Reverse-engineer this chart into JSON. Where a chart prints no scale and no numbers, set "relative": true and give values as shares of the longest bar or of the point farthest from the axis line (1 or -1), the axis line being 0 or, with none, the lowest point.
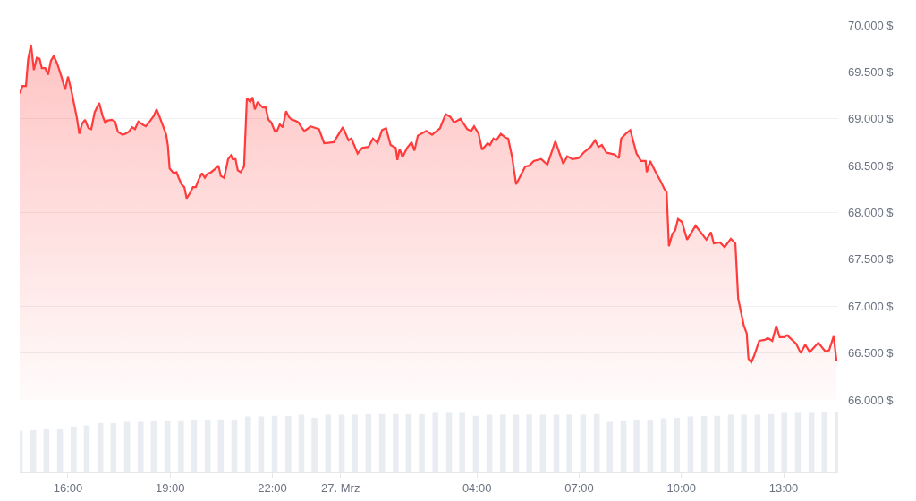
{
  "chart_data": [
    {
      "type": "area",
      "color": "#ff3b3b",
      "grid": "y",
      "tick_labels": "y",
      "xlim": [
        "--03-26T14:35",
        "--03-27T14:36"
      ],
      "ylim": [
        66000,
        70000
      ],
      "yticks": [
        {
          "value": 66000,
          "label": "66.000 $"
        },
        {
          "value": 66500,
          "label": "66.500 $"
        },
        {
          "value": 67000,
          "label": "67.000 $"
        },
        {
          "value": 67500,
          "label": "67.500 $"
        },
        {
          "value": 68000,
          "label": "68.000 $"
        },
        {
          "value": 68500,
          "label": "68.500 $"
        },
        {
          "value": 69000,
          "label": "69.000 $"
        },
        {
          "value": 69500,
          "label": "69.500 $"
        },
        {
          "value": 70000,
          "label": "70.000 $"
        }
      ],
      "x": [
        "--03-26T14:35",
        "--03-26T14:40",
        "--03-26T14:46",
        "--03-26T14:50",
        "--03-26T14:55",
        "--03-26T15:00",
        "--03-26T15:05",
        "--03-26T15:10",
        "--03-26T15:14",
        "--03-26T15:20",
        "--03-26T15:25",
        "--03-26T15:30",
        "--03-26T15:35",
        "--03-26T15:41",
        "--03-26T15:49",
        "--03-26T15:55",
        "--03-26T16:00",
        "--03-26T16:06",
        "--03-26T16:11",
        "--03-26T16:16",
        "--03-26T16:20",
        "--03-26T16:25",
        "--03-26T16:30",
        "--03-26T16:36",
        "--03-26T16:41",
        "--03-26T16:47",
        "--03-26T16:55",
        "--03-26T17:01",
        "--03-26T17:06",
        "--03-26T17:09",
        "--03-26T17:17",
        "--03-26T17:23",
        "--03-26T17:28",
        "--03-26T17:36",
        "--03-26T17:41",
        "--03-26T17:47",
        "--03-26T17:53",
        "--03-26T17:58",
        "--03-26T18:04",
        "--03-26T18:11",
        "--03-26T18:17",
        "--03-26T18:25",
        "--03-26T18:31",
        "--03-26T18:36",
        "--03-26T18:42",
        "--03-26T18:47",
        "--03-26T18:53",
        "--03-26T18:56",
        "--03-26T18:59",
        "--03-26T19:06",
        "--03-26T19:11",
        "--03-26T19:15",
        "--03-26T19:20",
        "--03-26T19:25",
        "--03-26T19:29",
        "--03-26T19:36",
        "--03-26T19:40",
        "--03-26T19:45",
        "--03-26T19:50",
        "--03-26T19:56",
        "--03-26T20:01",
        "--03-26T20:05",
        "--03-26T20:12",
        "--03-26T20:18",
        "--03-26T20:25",
        "--03-26T20:29",
        "--03-26T20:35",
        "--03-26T20:42",
        "--03-26T20:47",
        "--03-26T20:50",
        "--03-26T20:55",
        "--03-26T20:59",
        "--03-26T21:04",
        "--03-26T21:10",
        "--03-26T21:15",
        "--03-26T21:18",
        "--03-26T21:21",
        "--03-26T21:25",
        "--03-26T21:29",
        "--03-26T21:34",
        "--03-26T21:38",
        "--03-26T21:43",
        "--03-26T21:48",
        "--03-26T21:53",
        "--03-26T21:58",
        "--03-26T22:04",
        "--03-26T22:08",
        "--03-26T22:13",
        "--03-26T22:18",
        "--03-26T22:24",
        "--03-26T22:29",
        "--03-26T22:34",
        "--03-26T22:40",
        "--03-26T22:46",
        "--03-26T22:51",
        "--03-26T22:56",
        "--03-26T23:01",
        "--03-26T23:07",
        "--03-26T23:22",
        "--03-26T23:31",
        "--03-26T23:48",
        "--03-27T00:04",
        "--03-27T00:14",
        "--03-27T00:19",
        "--03-27T00:30",
        "--03-27T00:38",
        "--03-27T00:49",
        "--03-27T00:57",
        "--03-27T01:05",
        "--03-27T01:13",
        "--03-27T01:20",
        "--03-27T01:28",
        "--03-27T01:37",
        "--03-27T01:40",
        "--03-27T01:44",
        "--03-27T01:49",
        "--03-27T01:57",
        "--03-27T02:05",
        "--03-27T02:10",
        "--03-27T02:16",
        "--03-27T02:31",
        "--03-27T02:41",
        "--03-27T02:55",
        "--03-27T03:05",
        "--03-27T03:13",
        "--03-27T03:20",
        "--03-27T03:31",
        "--03-27T03:43",
        "--03-27T03:50",
        "--03-27T03:55",
        "--03-27T04:03",
        "--03-27T04:09",
        "--03-27T04:19",
        "--03-27T04:23",
        "--03-27T04:29",
        "--03-27T04:34",
        "--03-27T04:42",
        "--03-27T04:50",
        "--03-27T04:55",
        "--03-27T05:02",
        "--03-27T05:09",
        "--03-27T05:25",
        "--03-27T05:32",
        "--03-27T05:40",
        "--03-27T05:53",
        "--03-27T06:04",
        "--03-27T06:18",
        "--03-27T06:32",
        "--03-27T06:39",
        "--03-27T06:48",
        "--03-27T06:59",
        "--03-27T07:08",
        "--03-27T07:20",
        "--03-27T07:28",
        "--03-27T07:34",
        "--03-27T07:40",
        "--03-27T07:48",
        "--03-27T08:02",
        "--03-27T08:10",
        "--03-27T08:14",
        "--03-27T08:22",
        "--03-27T08:30",
        "--03-27T08:41",
        "--03-27T08:49",
        "--03-27T08:57",
        "--03-27T08:59",
        "--03-27T09:05",
        "--03-27T09:14",
        "--03-27T09:23",
        "--03-27T09:31",
        "--03-27T09:34",
        "--03-27T09:38",
        "--03-27T09:44",
        "--03-27T09:49",
        "--03-27T09:54",
        "--03-27T10:01",
        "--03-27T10:10",
        "--03-27T10:25",
        "--03-27T10:44",
        "--03-27T10:52",
        "--03-27T10:57",
        "--03-27T11:08",
        "--03-27T11:16",
        "--03-27T11:27",
        "--03-27T11:35",
        "--03-27T11:40",
        "--03-27T11:50",
        "--03-27T11:55",
        "--03-27T11:58",
        "--03-27T12:03",
        "--03-27T12:08",
        "--03-27T12:17",
        "--03-27T12:27",
        "--03-27T12:32",
        "--03-27T12:40",
        "--03-27T12:47",
        "--03-27T12:53",
        "--03-27T13:01",
        "--03-27T13:06",
        "--03-27T13:22",
        "--03-27T13:30",
        "--03-27T13:38",
        "--03-27T13:46",
        "--03-27T14:01",
        "--03-27T14:13",
        "--03-27T14:20",
        "--03-27T14:28",
        "--03-27T14:33"
      ],
      "values": [
        69270,
        69350,
        69350,
        69640,
        69790,
        69520,
        69650,
        69640,
        69540,
        69540,
        69470,
        69620,
        69670,
        69590,
        69440,
        69310,
        69450,
        69300,
        69150,
        69000,
        68840,
        68950,
        68990,
        68900,
        68890,
        69070,
        69170,
        69030,
        68950,
        68980,
        68990,
        68970,
        68860,
        68830,
        68840,
        68860,
        68910,
        68890,
        68970,
        68940,
        68920,
        68980,
        69030,
        69100,
        69010,
        68930,
        68830,
        68710,
        68470,
        68420,
        68430,
        68370,
        68300,
        68270,
        68150,
        68220,
        68270,
        68270,
        68350,
        68420,
        68370,
        68410,
        68430,
        68460,
        68500,
        68390,
        68370,
        68570,
        68610,
        68570,
        68570,
        68450,
        68430,
        68490,
        69220,
        69200,
        69180,
        69230,
        69100,
        69180,
        69150,
        69120,
        69120,
        68990,
        68960,
        68870,
        68870,
        68940,
        68910,
        69080,
        69020,
        68990,
        68980,
        68960,
        68910,
        68870,
        68890,
        68920,
        68890,
        68740,
        68750,
        68910,
        68770,
        68790,
        68630,
        68690,
        68700,
        68790,
        68740,
        68880,
        68900,
        68720,
        68690,
        68560,
        68680,
        68590,
        68690,
        68750,
        68660,
        68820,
        68870,
        68830,
        68900,
        69050,
        69020,
        68960,
        69000,
        68890,
        68870,
        68920,
        68840,
        68670,
        68740,
        68720,
        68790,
        68770,
        68840,
        68800,
        68790,
        68590,
        68300,
        68490,
        68500,
        68550,
        68570,
        68510,
        68760,
        68520,
        68600,
        68570,
        68580,
        68640,
        68700,
        68770,
        68700,
        68720,
        68640,
        68620,
        68580,
        68790,
        68840,
        68880,
        68630,
        68550,
        68550,
        68430,
        68550,
        68440,
        68340,
        68240,
        68220,
        67640,
        67770,
        67810,
        67930,
        67900,
        67710,
        67860,
        67710,
        67790,
        67670,
        67680,
        67630,
        67720,
        67670,
        67080,
        66790,
        66710,
        66440,
        66400,
        66470,
        66630,
        66640,
        66660,
        66630,
        66790,
        66670,
        66670,
        66690,
        66600,
        66500,
        66590,
        66510,
        66610,
        66520,
        66530,
        66680,
        66420
      ]
    },
    {
      "type": "bar",
      "relative": true,
      "color": "#e9edf2",
      "tick_labels": "x",
      "xlim": [
        "--03-26T14:35",
        "--03-27T14:36"
      ],
      "xticks": [
        {
          "value": "--03-26T16:00",
          "label": "16:00"
        },
        {
          "value": "--03-26T19:00",
          "label": "19:00"
        },
        {
          "value": "--03-26T22:00",
          "label": "22:00"
        },
        {
          "value": "--03-27",
          "label": "27. Mrz"
        },
        {
          "value": "--03-27T04:00",
          "label": "04:00"
        },
        {
          "value": "--03-27T07:00",
          "label": "07:00"
        },
        {
          "value": "--03-27T10:00",
          "label": "10:00"
        },
        {
          "value": "--03-27T13:00",
          "label": "13:00"
        }
      ],
      "x": [
        "--03-26T14:35",
        "--03-26T14:59",
        "--03-26T15:22",
        "--03-26T15:46",
        "--03-26T16:10",
        "--03-26T16:33",
        "--03-26T16:57",
        "--03-26T17:20",
        "--03-26T17:44",
        "--03-26T18:08",
        "--03-26T18:31",
        "--03-26T18:55",
        "--03-26T19:19",
        "--03-26T19:42",
        "--03-26T20:06",
        "--03-26T20:29",
        "--03-26T20:53",
        "--03-26T21:17",
        "--03-26T21:40",
        "--03-26T22:04",
        "--03-26T22:28",
        "--03-26T22:51",
        "--03-26T23:14",
        "--03-26T23:38",
        "--03-27T00:02",
        "--03-27T00:25",
        "--03-27T00:49",
        "--03-27T01:13",
        "--03-27T01:37",
        "--03-27T02:00",
        "--03-27T02:23",
        "--03-27T02:47",
        "--03-27T03:11",
        "--03-27T03:34",
        "--03-27T03:58",
        "--03-27T04:22",
        "--03-27T04:46",
        "--03-27T05:09",
        "--03-27T05:32",
        "--03-27T05:56",
        "--03-27T06:20",
        "--03-27T06:43",
        "--03-27T07:07",
        "--03-27T07:31",
        "--03-27T07:54",
        "--03-27T08:18",
        "--03-27T08:41",
        "--03-27T09:05",
        "--03-27T09:29",
        "--03-27T09:52",
        "--03-27T10:16",
        "--03-27T10:40",
        "--03-27T11:03",
        "--03-27T11:27",
        "--03-27T11:50",
        "--03-27T12:14",
        "--03-27T12:38",
        "--03-27T13:01",
        "--03-27T13:25",
        "--03-27T13:49",
        "--03-27T14:12",
        "--03-27T14:36"
      ],
      "values": [
        0.69,
        0.7,
        0.72,
        0.73,
        0.76,
        0.78,
        0.82,
        0.82,
        0.84,
        0.84,
        0.85,
        0.85,
        0.85,
        0.87,
        0.87,
        0.88,
        0.88,
        0.93,
        0.93,
        0.94,
        0.94,
        0.96,
        0.91,
        0.96,
        0.96,
        0.96,
        0.97,
        0.97,
        0.97,
        0.97,
        0.97,
        0.99,
        0.99,
        0.99,
        0.94,
        0.96,
        0.96,
        0.96,
        0.96,
        0.96,
        0.96,
        0.96,
        0.96,
        0.97,
        0.84,
        0.85,
        0.87,
        0.88,
        0.9,
        0.91,
        0.93,
        0.94,
        0.94,
        0.96,
        0.96,
        0.96,
        0.97,
        0.99,
        0.99,
        0.99,
        1,
        1
      ]
    }
  ]
}
